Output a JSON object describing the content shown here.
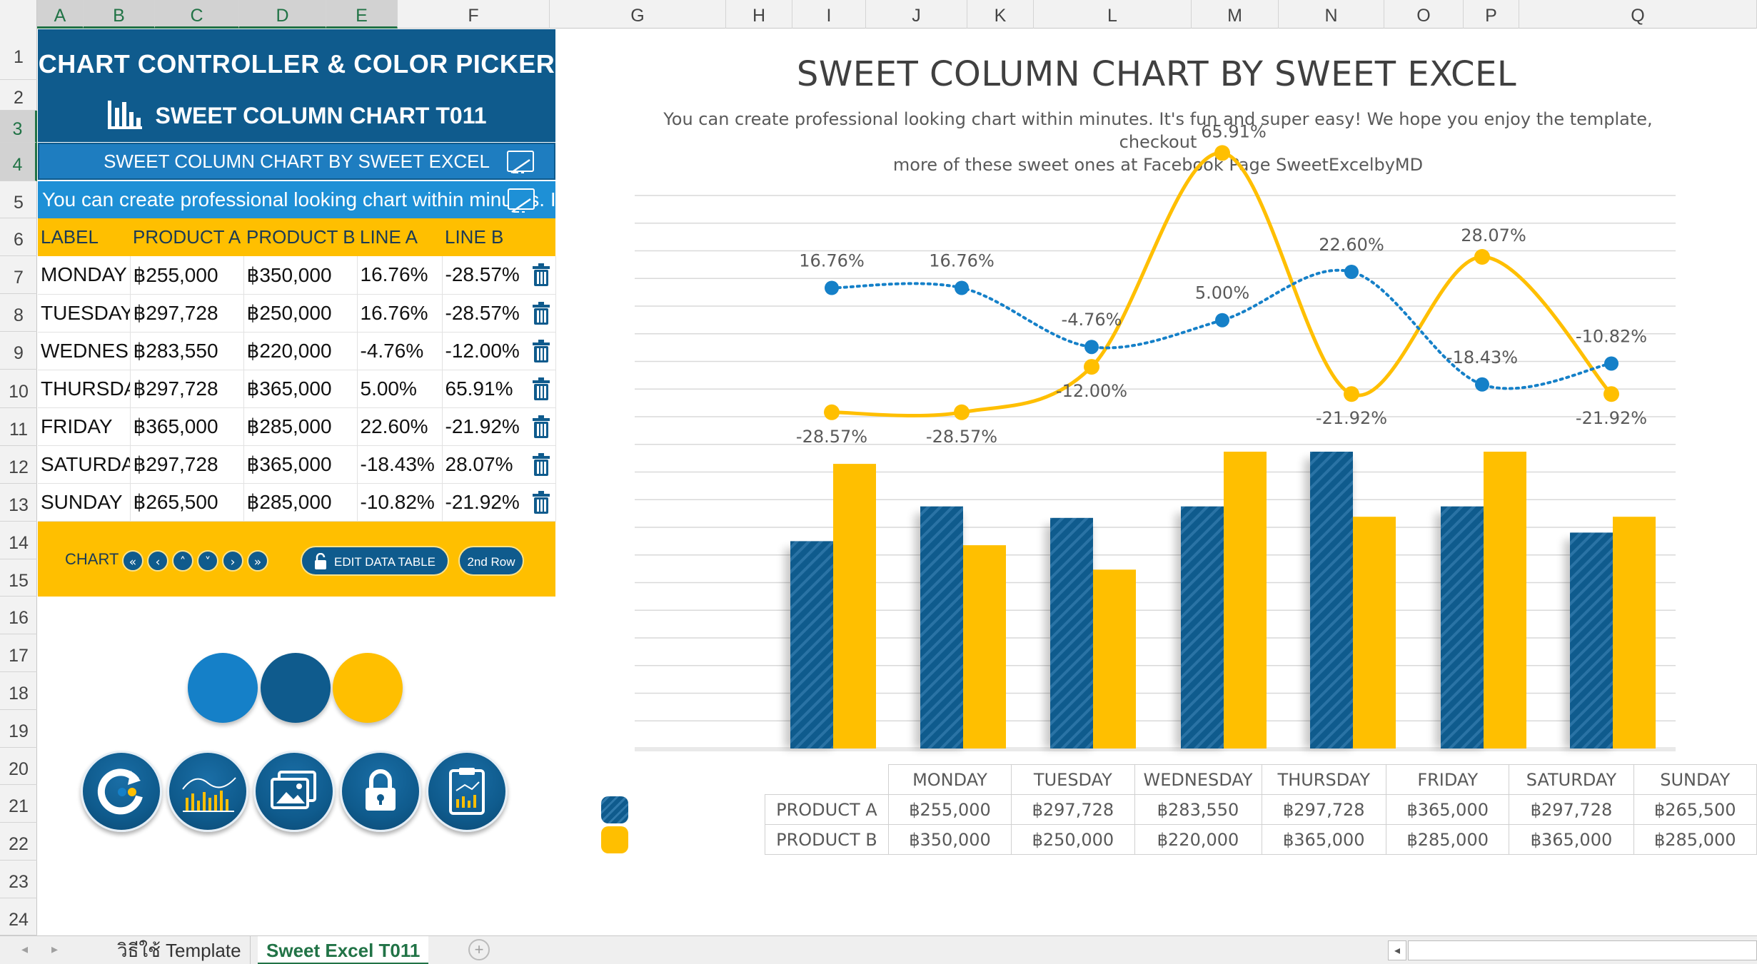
{
  "columns": [
    "A",
    "B",
    "C",
    "D",
    "E",
    "F",
    "G",
    "H",
    "I",
    "J",
    "K",
    "L",
    "M",
    "N",
    "O",
    "P",
    "Q"
  ],
  "rows": [
    "1",
    "2",
    "3",
    "4",
    "5",
    "6",
    "7",
    "8",
    "9",
    "10",
    "11",
    "12",
    "13",
    "14",
    "15",
    "16",
    "17",
    "18",
    "19",
    "20",
    "21",
    "22",
    "23",
    "24"
  ],
  "panel": {
    "title": "CHART CONTROLLER & COLOR PICKER",
    "subtitle": "SWEET COLUMN CHART T011",
    "chart_title_cell": "SWEET COLUMN CHART BY SWEET EXCEL",
    "chart_subtitle_cell": "You can create professional looking chart within minutes. It's fun and super easy!"
  },
  "table": {
    "headers": [
      "LABEL",
      "PRODUCT A",
      "PRODUCT B",
      "LINE A",
      "LINE B"
    ],
    "rows": [
      [
        "MONDAY",
        "฿255,000",
        "฿350,000",
        "16.76%",
        "-28.57%"
      ],
      [
        "TUESDAY",
        "฿297,728",
        "฿250,000",
        "16.76%",
        "-28.57%"
      ],
      [
        "WEDNESDAY",
        "฿283,550",
        "฿220,000",
        "-4.76%",
        "-12.00%"
      ],
      [
        "THURSDAY",
        "฿297,728",
        "฿365,000",
        "5.00%",
        "65.91%"
      ],
      [
        "FRIDAY",
        "฿365,000",
        "฿285,000",
        "22.60%",
        "-21.92%"
      ],
      [
        "SATURDAY",
        "฿297,728",
        "฿365,000",
        "-18.43%",
        "28.07%"
      ],
      [
        "SUNDAY",
        "฿265,500",
        "฿285,000",
        "-10.82%",
        "-21.92%"
      ]
    ]
  },
  "controls": {
    "chart_label": "CHART",
    "nav_buttons": [
      "«",
      "‹",
      "˄",
      "˅",
      "›",
      "»"
    ],
    "edit_button": "EDIT DATA TABLE",
    "second_row_button": "2nd Row"
  },
  "swatches": [
    "#1580c8",
    "#0f5b8d",
    "#ffbf00"
  ],
  "action_buttons": [
    "refresh-icon",
    "chart-icon",
    "image-icon",
    "lock-icon",
    "clipboard-icon"
  ],
  "colors": {
    "product_a": "#0f5b8d",
    "product_b": "#ffbf00",
    "line_a": "#1580c8",
    "line_b": "#ffbf00",
    "header_blue": "#0f5b8d",
    "accent_yellow": "#ffbf00"
  },
  "chart_data": {
    "type": "bar",
    "title": "SWEET COLUMN CHART BY SWEET EXCEL",
    "subtitle_line1": "You can create professional looking chart within minutes. It's fun and super easy! We hope you enjoy the template, checkout",
    "subtitle_line2": "more of these sweet ones at Facebook Page SweetExcelbyMD",
    "categories": [
      "MONDAY",
      "TUESDAY",
      "WEDNESDAY",
      "THURSDAY",
      "FRIDAY",
      "SATURDAY",
      "SUNDAY"
    ],
    "series": [
      {
        "name": "PRODUCT A",
        "values": [
          255000,
          297728,
          283550,
          297728,
          365000,
          297728,
          265500
        ],
        "labels": [
          "฿255,000",
          "฿297,728",
          "฿283,550",
          "฿297,728",
          "฿365,000",
          "฿297,728",
          "฿265,500"
        ]
      },
      {
        "name": "PRODUCT B",
        "values": [
          350000,
          250000,
          220000,
          365000,
          285000,
          365000,
          285000
        ],
        "labels": [
          "฿350,000",
          "฿250,000",
          "฿220,000",
          "฿365,000",
          "฿285,000",
          "฿365,000",
          "฿285,000"
        ]
      }
    ],
    "lines": [
      {
        "name": "LINE A",
        "values": [
          16.76,
          16.76,
          -4.76,
          5.0,
          22.6,
          -18.43,
          -10.82
        ],
        "labels": [
          "16.76%",
          "16.76%",
          "-4.76%",
          "5.00%",
          "22.60%",
          "-18.43%",
          "-10.82%"
        ],
        "style": "dotted"
      },
      {
        "name": "LINE B",
        "values": [
          -28.57,
          -28.57,
          -12.0,
          65.91,
          -21.92,
          28.07,
          -21.92
        ],
        "labels": [
          "-28.57%",
          "-28.57%",
          "-12.00%",
          "65.91%",
          "-21.92%",
          "28.07%",
          "-21.92%"
        ],
        "style": "smooth"
      }
    ],
    "ylim_bars": [
      0,
      370000
    ],
    "ylim_lines": [
      -45,
      72
    ],
    "grid": true,
    "legend": "data-table-below"
  },
  "sheet_tabs": [
    "วิธีใช้ Template",
    "Sweet Excel T011"
  ],
  "active_tab": 1
}
